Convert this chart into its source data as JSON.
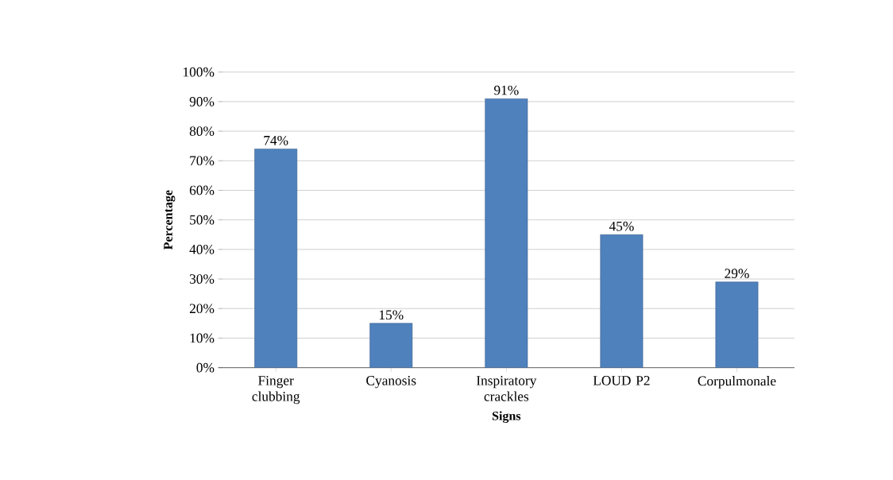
{
  "chart_data": {
    "type": "bar",
    "xlabel": "Signs",
    "ylabel": "Percentage",
    "categories": [
      "Finger clubbing",
      "Cyanosis",
      "Inspiratory crackles",
      "LOUD P2",
      "Corpulmonale"
    ],
    "values": [
      74,
      15,
      91,
      45,
      29
    ],
    "value_labels": [
      "74%",
      "15%",
      "91%",
      "45%",
      "29%"
    ],
    "color": "#4f81bd",
    "ylim": [
      0,
      100
    ],
    "yticks": [
      {
        "value": 0,
        "label": "0%"
      },
      {
        "value": 10,
        "label": "10%"
      },
      {
        "value": 20,
        "label": "20%"
      },
      {
        "value": 30,
        "label": "30%"
      },
      {
        "value": 40,
        "label": "40%"
      },
      {
        "value": 50,
        "label": "50%"
      },
      {
        "value": 60,
        "label": "60%"
      },
      {
        "value": 70,
        "label": "70%"
      },
      {
        "value": 80,
        "label": "80%"
      },
      {
        "value": 90,
        "label": "90%"
      },
      {
        "value": 100,
        "label": "100%"
      }
    ],
    "grid": "y"
  }
}
